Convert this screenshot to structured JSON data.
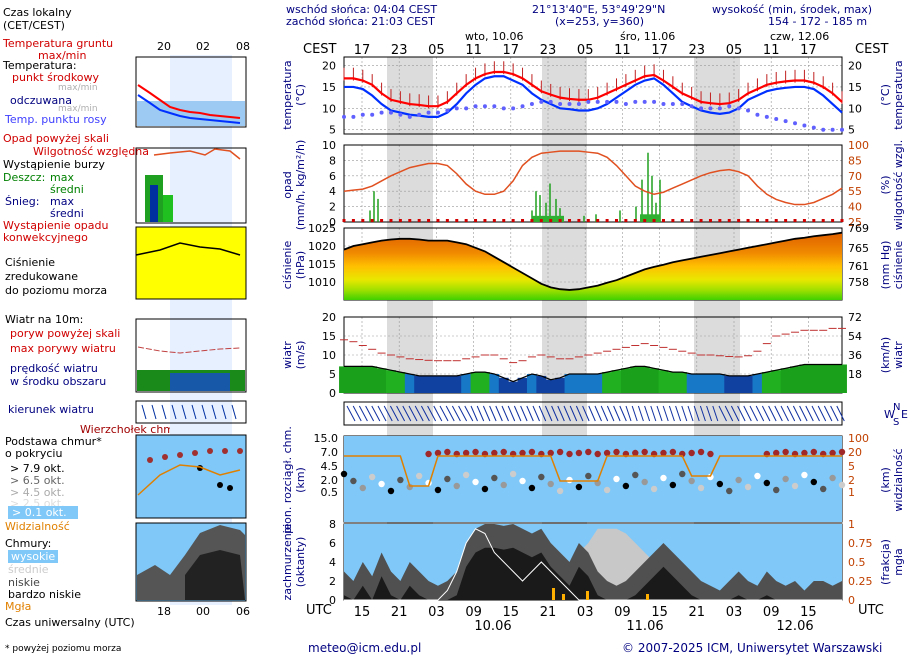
{
  "header": {
    "sunrise": "wschód słońca: 04:04 CEST",
    "sunset": "zachód słońca: 21:03 CEST",
    "coords": "21°13'40\"E, 53°49'29\"N",
    "grid": "(x=253, y=360)",
    "elev_title": "wysokość (min, środek, max)",
    "elev_vals": "154 - 172 - 185 m"
  },
  "days_top": [
    "wto, 10.06",
    "śro, 11.06",
    "czw, 12.06"
  ],
  "tz_local": "CEST",
  "tz_utc": "UTC",
  "local_hours": [
    "17",
    "23",
    "05",
    "11",
    "17",
    "23",
    "05",
    "11",
    "17",
    "23",
    "05",
    "11",
    "17"
  ],
  "utc_hours": [
    "15",
    "21",
    "03",
    "09",
    "15",
    "21",
    "03",
    "09",
    "15",
    "21",
    "03",
    "09",
    "15"
  ],
  "days_bottom": [
    "10.06",
    "11.06",
    "12.06"
  ],
  "legend": {
    "czas_lokalny": "Czas lokalny",
    "cet": "(CET/CEST)",
    "leg_local_hours": [
      "20",
      "02",
      "08"
    ],
    "leg_utc_hours": [
      "18",
      "00",
      "06"
    ],
    "temp_grunt": "Temperatura gruntu",
    "maxmin": "max/min",
    "temperatura": "Temperatura:",
    "punkt": "punkt środkowy",
    "odczuwana": "odczuwana",
    "rosy": "Temp. punktu rosy",
    "opad_skali": "Opad powyżej skali",
    "wilg": "Wilgotność względna",
    "burza": "Wystąpienie burzy",
    "deszcz": "Deszcz:",
    "max": "max",
    "sredni": "średni",
    "snieg": "Śnieg:",
    "opad_konw1": "Wystąpienie opadu",
    "opad_konw2": "konwekcyjnego",
    "cisn1": "Ciśnienie",
    "cisn2": "zredukowane",
    "cisn3": "do poziomu morza",
    "wiatr": "Wiatr na 10m:",
    "poryw_skali": "poryw powyżej skali",
    "max_porywy": "max porywy wiatru",
    "predk1": "prędkość wiatru",
    "predk2": "w środku obszaru",
    "kierunek": "kierunek wiatru",
    "wierzch": "Wierzchołek chmur",
    "podstawa1": "Podstawa chmur*",
    "podstawa2": "o pokryciu",
    "okt": [
      "> 7.9 okt.",
      "> 6.5 okt.",
      "> 4.5 okt.",
      "> 2.5 okt.",
      "> 0.1 okt."
    ],
    "widz": "Widzialność",
    "chmury": "Chmury:",
    "wysokie": "wysokie",
    "srednie": "średnie",
    "niskie": "niskie",
    "bniskie": "bardzo niskie",
    "mgla": "Mgła",
    "czas_utc": "Czas uniwersalny (UTC)",
    "foot": "* powyżej poziomu morza"
  },
  "axis_labels": {
    "temp_l": "temperatura",
    "temp_l2": "(°C)",
    "temp_r": "(°C)",
    "temp_r2": "temperatura",
    "opad_l": "opad",
    "opad_l2": "(mm/h, kg/m²/h)",
    "opad_r": "(%)",
    "opad_r2": "wilgotność wzgl.",
    "cis_l": "ciśnienie",
    "cis_l2": "(hPa)",
    "cis_r": "(mm Hg)",
    "cis_r2": "ciśnienie",
    "wiatr_l": "wiatr",
    "wiatr_l2": "(m/s)",
    "wiatr_r": "(km/h)",
    "wiatr_r2": "wiatr",
    "chm_l": "pion. rozciągł. chm.",
    "chm_l2": "(km)",
    "chm_r": "(km)",
    "chm_r2": "widzialność",
    "zach_l": "zachmurzenie",
    "zach_l2": "(oktanty)",
    "zach_r": "(frakcja)",
    "zach_r2": "mgła",
    "compass_w": "W",
    "compass_n": "N",
    "compass_e": "E",
    "compass_s": "S"
  },
  "footer": {
    "email": "meteo@icm.edu.pl",
    "copyright": "© 2007-2025 ICM, Uniwersytet Warszawski"
  },
  "chart_data": [
    {
      "type": "line",
      "title": "temperatura (°C)",
      "x_hours_utc_from": "10.06 13:00",
      "ylim": [
        4,
        22
      ],
      "yticks": [
        5,
        10,
        15,
        20
      ],
      "series": [
        {
          "name": "punkt środkowy",
          "color": "#ff0000",
          "values": [
            17,
            17,
            16.5,
            15.5,
            13.5,
            12,
            11.5,
            11,
            10.8,
            10.5,
            10.5,
            11.5,
            13.5,
            15.5,
            17,
            18,
            18.5,
            18.5,
            18,
            17,
            15.5,
            14,
            13.2,
            12.5,
            12.2,
            12,
            12,
            12.5,
            13.5,
            14.5,
            15.5,
            16.5,
            17.5,
            17.8,
            16.5,
            15,
            13.5,
            12.5,
            11.5,
            11.2,
            11,
            11.2,
            12,
            13.5,
            14.5,
            15.5,
            16,
            16.3,
            16.5,
            16.5,
            16,
            15,
            13.5,
            11.5
          ]
        },
        {
          "name": "odczuwana",
          "color": "#0030ff",
          "values": [
            15,
            15,
            14.5,
            13,
            11,
            9.5,
            9,
            8.5,
            8.3,
            8,
            8,
            9,
            11,
            13.5,
            15.5,
            17,
            17.5,
            17.5,
            16.5,
            15.5,
            13.5,
            12,
            11,
            10,
            9.8,
            9.5,
            9.5,
            10,
            11,
            12.5,
            14,
            15.5,
            16.5,
            17,
            15.5,
            13.5,
            11.5,
            10.5,
            9.5,
            9,
            8.7,
            9,
            10,
            12,
            13,
            14,
            14.5,
            14.8,
            15,
            15,
            14.5,
            13,
            11,
            9
          ]
        },
        {
          "name": "Temp. punktu rosy",
          "color": "#6060ff",
          "values": [
            8,
            8,
            8.5,
            8.5,
            9,
            9,
            8.5,
            8,
            8.5,
            9,
            9,
            9.5,
            10,
            10,
            10.5,
            10.5,
            10.5,
            10,
            10,
            10.5,
            11,
            11.5,
            11.5,
            11,
            11,
            11,
            11.5,
            11.5,
            11.5,
            11.5,
            11,
            11.5,
            11.5,
            11.5,
            11,
            11,
            11,
            10.5,
            10,
            10,
            10,
            10.5,
            10,
            9.5,
            8.5,
            8,
            7.5,
            7,
            6.5,
            6,
            5.5,
            5,
            5,
            5
          ]
        }
      ]
    },
    {
      "type": "bar",
      "title": "opad (mm/h, kg/m²/h) / wilgotność wzgl. (%)",
      "ylim_left": [
        0,
        10
      ],
      "ylim_right": [
        25,
        100
      ],
      "humidity": [
        55,
        56,
        57,
        60,
        65,
        70,
        74,
        78,
        80,
        82,
        82,
        80,
        72,
        62,
        55,
        52,
        52,
        55,
        65,
        80,
        88,
        92,
        93,
        94,
        94,
        94,
        93,
        92,
        88,
        80,
        70,
        60,
        55,
        52,
        54,
        58,
        62,
        66,
        70,
        73,
        75,
        76,
        74,
        70,
        60,
        52,
        47,
        44,
        42,
        42,
        44,
        48,
        52,
        58
      ]
    },
    {
      "type": "area",
      "title": "ciśnienie (hPa)",
      "ylim": [
        1005,
        1025
      ],
      "yticks": [
        1010,
        1015,
        1020,
        1025
      ],
      "yticks_right": [
        758,
        761,
        765,
        769
      ],
      "values": [
        1019,
        1020,
        1020.5,
        1021,
        1021.5,
        1021.8,
        1022,
        1022,
        1021.8,
        1021.5,
        1021.5,
        1021.5,
        1021,
        1020.5,
        1019.5,
        1018.5,
        1017,
        1015.5,
        1014,
        1012.5,
        1011,
        1009.5,
        1008.5,
        1008,
        1007.8,
        1008,
        1008.5,
        1009,
        1009.8,
        1010.5,
        1011.5,
        1012.5,
        1013.5,
        1014.2,
        1014.8,
        1015.5,
        1016,
        1016.5,
        1017,
        1017.5,
        1018,
        1018.5,
        1019,
        1019.5,
        1020,
        1020.5,
        1021,
        1021.5,
        1022,
        1022.3,
        1022.7,
        1023,
        1023.3,
        1023.7
      ]
    },
    {
      "type": "area",
      "title": "wiatr (m/s)",
      "ylim": [
        0,
        20
      ],
      "yticks": [
        5,
        10,
        15,
        20
      ],
      "yticks_right": [
        18,
        36,
        54,
        72
      ],
      "speed": [
        7,
        7,
        7,
        7,
        6.5,
        6,
        5.5,
        5,
        4.5,
        4.5,
        4.5,
        4.5,
        4.5,
        5,
        5.5,
        5.5,
        5,
        4,
        3,
        4,
        5,
        4.5,
        3.5,
        4,
        5,
        5,
        5,
        5,
        5.5,
        6,
        6.5,
        7,
        7,
        6.5,
        6,
        5.5,
        5.5,
        5,
        5,
        5,
        5,
        4.5,
        4.5,
        4.5,
        5,
        5.5,
        6,
        6.5,
        7,
        7.5,
        7.5,
        7.5,
        7.5,
        7.5
      ],
      "gust": [
        14,
        13.5,
        12.5,
        11.5,
        10.5,
        10,
        9.5,
        9,
        8.8,
        8.6,
        8.5,
        8.5,
        8.5,
        9,
        9.5,
        10,
        10,
        9,
        8,
        8.5,
        9.5,
        10,
        9.5,
        9,
        9,
        9.5,
        10,
        10.5,
        11,
        11.5,
        12,
        12.5,
        13,
        12.5,
        12,
        11.5,
        11,
        10.5,
        10,
        10,
        9.8,
        9.6,
        9.5,
        9.8,
        11,
        13,
        15,
        15.5,
        16,
        16.5,
        16.5,
        16.5,
        17,
        17
      ]
    },
    {
      "type": "scatter",
      "title": "pion. rozciągł. chm. (km) / widzialność (km)",
      "ylim": [
        0,
        15
      ],
      "yticks": [
        0.5,
        2.0,
        4.5,
        7.0,
        15.0
      ],
      "yticks_right": [
        1,
        2,
        5,
        20,
        100
      ]
    },
    {
      "type": "area",
      "title": "zachmurzenie (oktanty) / mgła (frakcja)",
      "ylim": [
        0,
        8
      ],
      "yticks": [
        0,
        2,
        4,
        6,
        8
      ],
      "yticks_right": [
        0,
        0.25,
        0.5,
        0.75,
        1
      ]
    }
  ]
}
